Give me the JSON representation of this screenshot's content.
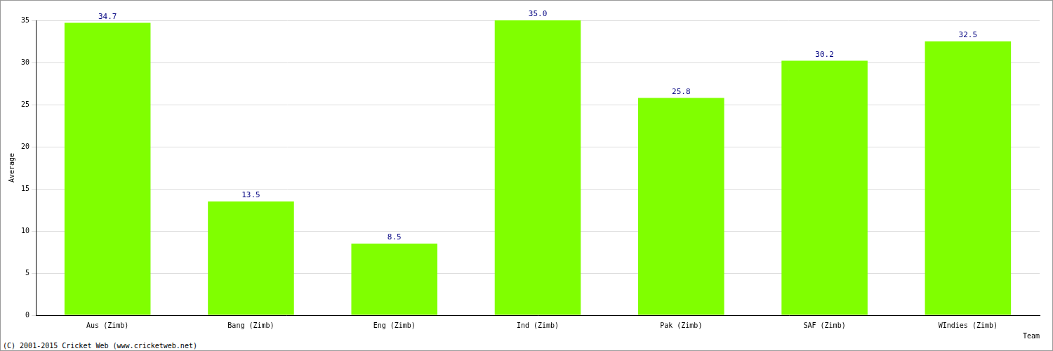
{
  "chart_data": {
    "type": "bar",
    "categories": [
      "Aus (Zimb)",
      "Bang (Zimb)",
      "Eng (Zimb)",
      "Ind (Zimb)",
      "Pak (Zimb)",
      "SAF (Zimb)",
      "WIndies (Zimb)"
    ],
    "values": [
      34.7,
      13.5,
      8.5,
      35.0,
      25.8,
      30.2,
      32.5
    ],
    "value_labels": [
      "34.7",
      "13.5",
      "8.5",
      "35.0",
      "25.8",
      "30.2",
      "32.5"
    ],
    "color": "#80ff00",
    "x_label": "Team",
    "y_label": "Average",
    "annotations": [
      "(C) 2001-2015 Cricket Web (www.cricketweb.net)"
    ],
    "ylim": [
      0,
      35
    ],
    "yticks": [
      0,
      5,
      10,
      15,
      20,
      25,
      30,
      35
    ],
    "grid": true,
    "data_labels": true
  }
}
